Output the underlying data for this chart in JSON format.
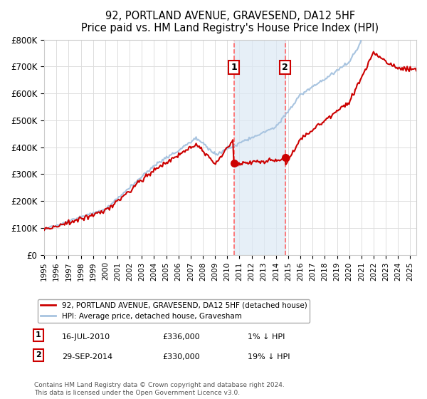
{
  "title": "92, PORTLAND AVENUE, GRAVESEND, DA12 5HF",
  "subtitle": "Price paid vs. HM Land Registry's House Price Index (HPI)",
  "ylabel_ticks": [
    "£0",
    "£100K",
    "£200K",
    "£300K",
    "£400K",
    "£500K",
    "£600K",
    "£700K",
    "£800K"
  ],
  "ylim": [
    0,
    800000
  ],
  "xlim_start": 1995.0,
  "xlim_end": 2025.5,
  "xticks": [
    1995,
    1996,
    1997,
    1998,
    1999,
    2000,
    2001,
    2002,
    2003,
    2004,
    2005,
    2006,
    2007,
    2008,
    2009,
    2010,
    2011,
    2012,
    2013,
    2014,
    2015,
    2016,
    2017,
    2018,
    2019,
    2020,
    2021,
    2022,
    2023,
    2024,
    2025
  ],
  "hpi_color": "#a8c4e0",
  "price_color": "#cc0000",
  "marker_color": "#cc0000",
  "vline_color": "#ff6666",
  "shade_color": "#dce9f5",
  "transaction1_x": 2010.54,
  "transaction2_x": 2014.75,
  "transaction1_label": "1",
  "transaction2_label": "2",
  "transaction1_price": 336000,
  "transaction2_price": 330000,
  "legend_line1": "92, PORTLAND AVENUE, GRAVESEND, DA12 5HF (detached house)",
  "legend_line2": "HPI: Average price, detached house, Gravesham",
  "note1_label": "1",
  "note1_date": "16-JUL-2010",
  "note1_price": "£336,000",
  "note1_rel": "1% ↓ HPI",
  "note2_label": "2",
  "note2_date": "29-SEP-2014",
  "note2_price": "£330,000",
  "note2_rel": "19% ↓ HPI",
  "footnote": "Contains HM Land Registry data © Crown copyright and database right 2024.\nThis data is licensed under the Open Government Licence v3.0.",
  "bg_color": "#ffffff",
  "grid_color": "#dddddd"
}
